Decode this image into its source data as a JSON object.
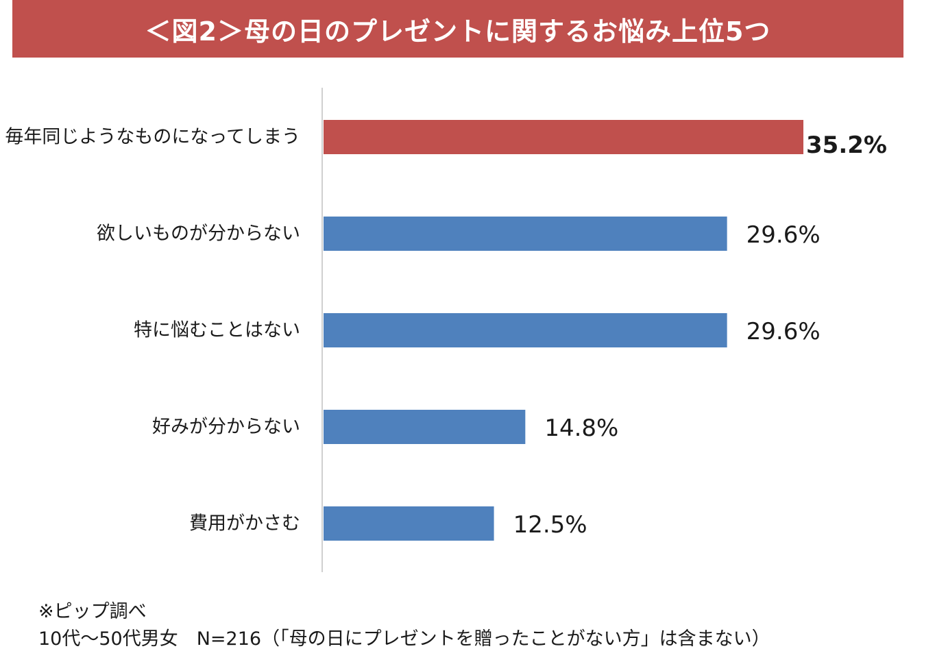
{
  "title": "＜図2＞母の日のプレゼントに関するお悩み上位5つ",
  "colors": {
    "title_background": "#c0504d",
    "highlight_bar": "#c0504d",
    "bar": "#4f81bd",
    "axis": "#d0d0d0"
  },
  "chart_data": {
    "type": "bar",
    "orientation": "horizontal",
    "categories": [
      "毎年同じようなものになってしまう",
      "欲しいものが分からない",
      "特に悩むことはない",
      "好みが分からない",
      "費用がかさむ"
    ],
    "values": [
      35.2,
      29.6,
      29.6,
      14.8,
      12.5
    ],
    "value_labels": [
      "35.2%",
      "29.6%",
      "29.6%",
      "14.8%",
      "12.5%"
    ],
    "highlight_index": 0,
    "unit": "%",
    "xlim": [
      0,
      35.2
    ],
    "grid": false,
    "legend": "none"
  },
  "notes": {
    "source": "※ピップ調べ",
    "sample": "10代～50代男女　N=216（「母の日にプレゼントを贈ったことがない方」は含まない）"
  }
}
